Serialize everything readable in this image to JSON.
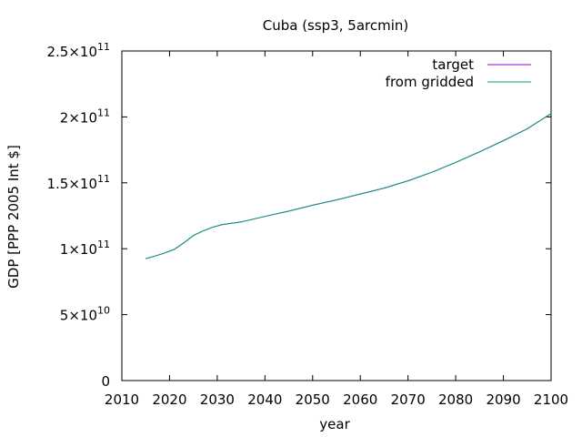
{
  "chart_data": {
    "type": "line",
    "title": "Cuba (ssp3, 5arcmin)",
    "xlabel": "year",
    "ylabel": "GDP [PPP 2005 Int $]",
    "xlim": [
      2010,
      2100
    ],
    "ylim": [
      0,
      250000000000
    ],
    "x_ticks": [
      2010,
      2020,
      2030,
      2040,
      2050,
      2060,
      2070,
      2080,
      2090,
      2100
    ],
    "y_ticks": [
      {
        "value": 0,
        "mantissa": "0",
        "exponent": ""
      },
      {
        "value": 50000000000,
        "mantissa": "5×10",
        "exponent": "10"
      },
      {
        "value": 100000000000,
        "mantissa": "1×10",
        "exponent": "11"
      },
      {
        "value": 150000000000,
        "mantissa": "1.5×10",
        "exponent": "11"
      },
      {
        "value": 200000000000,
        "mantissa": "2×10",
        "exponent": "11"
      },
      {
        "value": 250000000000,
        "mantissa": "2.5×10",
        "exponent": "11"
      }
    ],
    "grid": false,
    "legend_position": "top-right",
    "x": [
      2015,
      2017,
      2019,
      2021,
      2023,
      2025,
      2027,
      2029,
      2031,
      2033,
      2035,
      2040,
      2045,
      2050,
      2055,
      2060,
      2065,
      2070,
      2075,
      2080,
      2085,
      2090,
      2095,
      2100
    ],
    "series": [
      {
        "name": "target",
        "color": "#9400d3",
        "values": [
          92500000000,
          94500000000,
          96800000000,
          99500000000,
          104500000000,
          110000000000,
          113500000000,
          116200000000,
          118200000000,
          119300000000,
          120300000000,
          124500000000,
          128500000000,
          133000000000,
          137000000000,
          141500000000,
          146000000000,
          151500000000,
          158000000000,
          165500000000,
          173500000000,
          182000000000,
          191000000000,
          202500000000
        ]
      },
      {
        "name": "from gridded",
        "color": "#009e73",
        "values": [
          92500000000,
          94500000000,
          96800000000,
          99500000000,
          104500000000,
          110000000000,
          113500000000,
          116200000000,
          118200000000,
          119300000000,
          120300000000,
          124500000000,
          128500000000,
          133000000000,
          137000000000,
          141500000000,
          146000000000,
          151500000000,
          158000000000,
          165500000000,
          173500000000,
          182000000000,
          191000000000,
          202500000000
        ]
      }
    ]
  }
}
